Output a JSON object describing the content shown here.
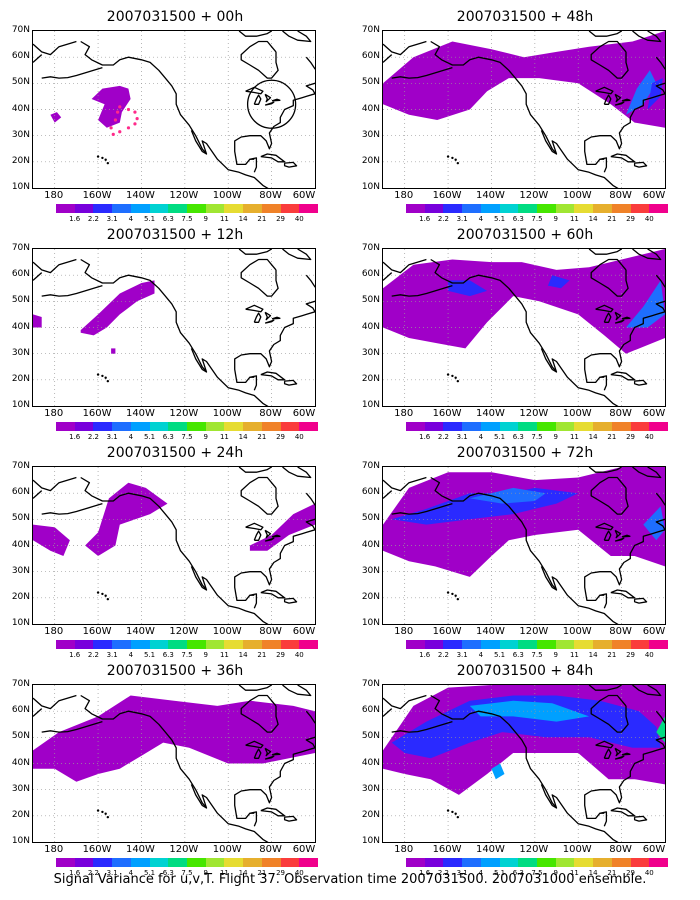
{
  "caption": "Signal Variance for u,v,T. Flight 37. Observation time 2007031500. 2007031000 ensemble.",
  "lat_labels": [
    "70N",
    "60N",
    "50N",
    "40N",
    "30N",
    "20N",
    "10N"
  ],
  "lon_labels": [
    "180",
    "160W",
    "140W",
    "120W",
    "100W",
    "80W",
    "60W"
  ],
  "colorbar": {
    "labels": [
      "1.6",
      "2.2",
      "3.1",
      "4",
      "5.1",
      "6.3",
      "7.5",
      "9",
      "11",
      "14",
      "21",
      "29",
      "40"
    ],
    "colors": [
      "#a000c8",
      "#7800dc",
      "#2a2aff",
      "#1e6eff",
      "#00a0ff",
      "#00d2d2",
      "#00dc82",
      "#46e600",
      "#a0e632",
      "#e6dc32",
      "#e6af2d",
      "#f08228",
      "#fa3c3c",
      "#f0008c"
    ]
  },
  "panels": [
    {
      "title": "2007031500 + 00h",
      "shows_observation_track": true,
      "shows_target_circle": true
    },
    {
      "title": "2007031500 + 48h"
    },
    {
      "title": "2007031500 + 12h"
    },
    {
      "title": "2007031500 + 60h"
    },
    {
      "title": "2007031500 + 24h"
    },
    {
      "title": "2007031500 + 72h"
    },
    {
      "title": "2007031500 + 36h"
    },
    {
      "title": "2007031500 + 84h"
    }
  ]
}
